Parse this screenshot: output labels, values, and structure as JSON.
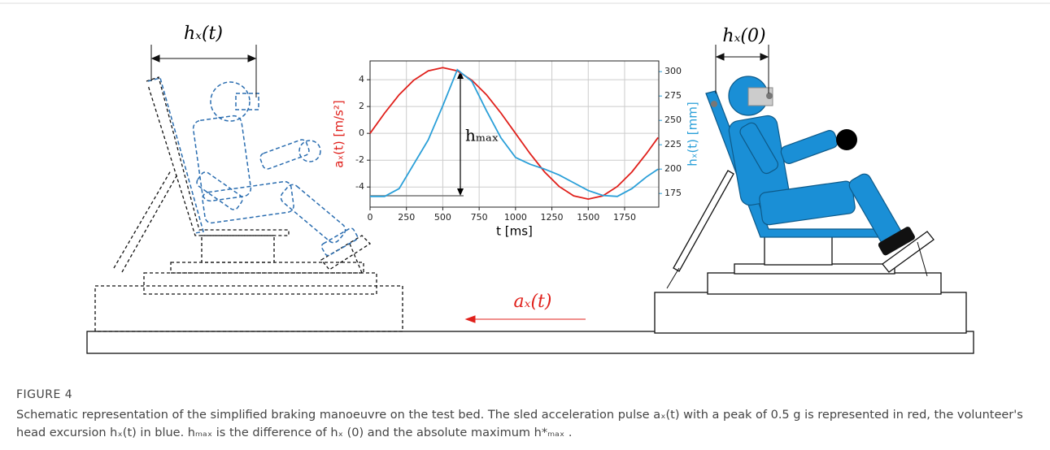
{
  "figure_label": "FIGURE 4",
  "caption": "Schematic representation of the simplified braking manoeuvre on the test bed. The sled acceleration pulse aₓ(t) with a peak of 0.5 g is represented in red, the volunteer's head excursion hₓ(t) in blue. hₘₐₓ is the difference of hₓ (0) and the absolute maximum h*ₘₐₓ .",
  "diagram": {
    "head_excursion_label": "hₓ(t)",
    "initial_position_label": "hₓ(0)",
    "acceleration_label": "aₓ(t)"
  },
  "chart_data": {
    "type": "line",
    "x_label": "t [ms]",
    "y_label": "aₓ(t) [m/s²]",
    "y2_label": "hₓ(t) [mm]",
    "annotation": "hₘₐₓ",
    "x": [
      0,
      100,
      200,
      300,
      400,
      500,
      600,
      700,
      800,
      900,
      1000,
      1100,
      1200,
      1300,
      1400,
      1500,
      1600,
      1700,
      1800,
      1900,
      1980
    ],
    "xlim": [
      0,
      1985
    ],
    "xticks": [
      0,
      250,
      500,
      750,
      1000,
      1250,
      1500,
      1750
    ],
    "ylim": [
      -5.5,
      5.4
    ],
    "yticks": [
      -4,
      -2,
      0,
      2,
      4
    ],
    "y2lim": [
      161,
      311
    ],
    "y2ticks": [
      175,
      200,
      225,
      250,
      275,
      300
    ],
    "grid": true,
    "series": [
      {
        "name": "aₓ(t) [m/s²]",
        "color": "#e0201b",
        "axis": "y",
        "values": [
          0,
          1.51,
          2.88,
          3.96,
          4.66,
          4.9,
          4.66,
          3.96,
          2.88,
          1.51,
          0,
          -1.51,
          -2.88,
          -3.96,
          -4.66,
          -4.9,
          -4.66,
          -3.96,
          -2.88,
          -1.51,
          -0.31
        ]
      },
      {
        "name": "hₓ(t) [mm]",
        "color": "#2a9fd8",
        "axis": "y2",
        "values": [
          172,
          172,
          180,
          205,
          230,
          265,
          302,
          290,
          260,
          232,
          212,
          205,
          200,
          194,
          186,
          178,
          173,
          172,
          180,
          192,
          200
        ]
      }
    ]
  }
}
